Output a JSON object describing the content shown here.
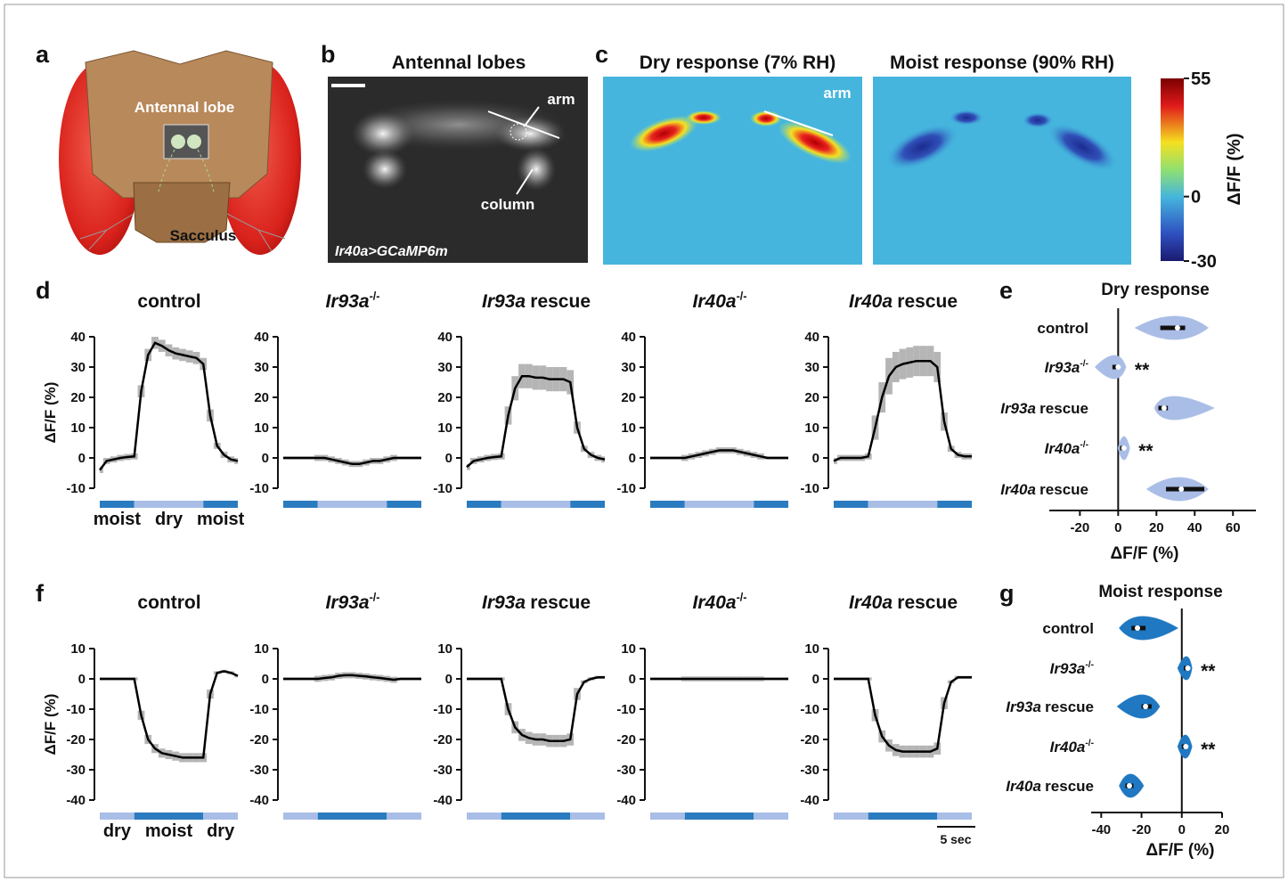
{
  "panel_a": {
    "label": "a",
    "antennal_lobe": "Antennal lobe",
    "sacculus": "Sacculus"
  },
  "panel_b": {
    "label": "b",
    "title": "Antennal lobes",
    "arm": "arm",
    "column": "column",
    "genotype": "Ir40a>GCaMP6m"
  },
  "panel_c": {
    "label": "c",
    "dry_title": "Dry response (7% RH)",
    "moist_title": "Moist response (90% RH)",
    "arm": "arm",
    "colorbar": {
      "lim": [
        -30,
        55
      ],
      "ticks": [
        55,
        0,
        -30
      ],
      "label": "ΔF/F (%)"
    }
  },
  "genotypes": [
    {
      "name": "control"
    },
    {
      "gene": "Ir93a",
      "sup": "-/-"
    },
    {
      "gene": "Ir93a",
      "text": "rescue"
    },
    {
      "gene": "Ir40a",
      "sup": "-/-"
    },
    {
      "gene": "Ir40a",
      "text": "rescue"
    }
  ],
  "panel_d": {
    "label": "d",
    "ylim": [
      -10,
      40
    ],
    "yticks": [
      -10,
      0,
      10,
      20,
      30,
      40
    ],
    "y_label": "ΔF/F (%)",
    "stimulus_labels": [
      "moist",
      "dry",
      "moist"
    ],
    "stimulus_colors": [
      "#2a7bc0",
      "#a9bee6",
      "#2a7bc0"
    ],
    "series": [
      {
        "values": [
          -4,
          -1,
          -0.5,
          0,
          0.3,
          0.5,
          22,
          34,
          38,
          37,
          35.5,
          34.5,
          34,
          33.5,
          33,
          31,
          14,
          4,
          1,
          -0.5,
          -1
        ],
        "error": [
          1,
          1,
          1,
          1,
          1,
          1,
          2,
          2,
          2,
          2,
          2,
          2,
          2,
          2,
          2,
          2,
          2,
          1,
          1,
          1,
          1
        ]
      },
      {
        "values": [
          0,
          0,
          0,
          0,
          0,
          0,
          0,
          -0.5,
          -1,
          -1.5,
          -2,
          -2,
          -1.5,
          -1,
          -1,
          -0.5,
          0,
          0,
          0,
          0,
          0
        ],
        "error": [
          0.5,
          0.5,
          0.5,
          0.5,
          0.5,
          1,
          1,
          1,
          1,
          1,
          1,
          1,
          1,
          1,
          1,
          1,
          1,
          0.5,
          0.5,
          0.5,
          0.5
        ]
      },
      {
        "values": [
          -3,
          -1,
          -0.5,
          0,
          0.3,
          0.5,
          14,
          23,
          27,
          27,
          26.5,
          26.5,
          26,
          26,
          26,
          25,
          10,
          3,
          1,
          0,
          -0.5
        ],
        "error": [
          1,
          1,
          1,
          1,
          1,
          1,
          3,
          4,
          4,
          4,
          4,
          4,
          4,
          4,
          4,
          4,
          2,
          1,
          1,
          1,
          1
        ]
      },
      {
        "values": [
          0,
          0,
          0,
          0,
          0,
          0,
          0.5,
          1,
          1.5,
          2,
          2.5,
          2.5,
          2.5,
          2,
          1.5,
          1,
          0.5,
          0,
          0,
          0,
          0
        ],
        "error": [
          0.5,
          0.5,
          0.5,
          0.5,
          0.5,
          1,
          1,
          1,
          1,
          1,
          1,
          1,
          1,
          1,
          1,
          1,
          1,
          0.5,
          0.5,
          0.5,
          0.5
        ]
      },
      {
        "values": [
          -1,
          0,
          0,
          0,
          0,
          0.5,
          10,
          20,
          27,
          30,
          31,
          31.5,
          32,
          32,
          32,
          30,
          12,
          3,
          1,
          0.5,
          0.5
        ],
        "error": [
          1,
          1,
          1,
          1,
          1,
          1,
          4,
          5,
          6,
          5,
          5,
          5,
          5,
          5,
          5,
          5,
          3,
          1,
          1,
          1,
          1
        ]
      }
    ]
  },
  "panel_e": {
    "label": "e",
    "title": "Dry response",
    "x_label": "ΔF/F (%)",
    "xlim": [
      -36,
      72
    ],
    "xticks": [
      -20,
      0,
      20,
      40,
      60
    ],
    "color": "#a9bde6",
    "violins": [
      {
        "min": 9,
        "q1": 22,
        "median": 31,
        "q3": 35,
        "max": 47
      },
      {
        "min": -12,
        "q1": -3,
        "median": 0,
        "q3": 1,
        "max": 4,
        "annotation": "**"
      },
      {
        "min": 19,
        "q1": 21,
        "median": 24,
        "q3": 26,
        "max": 50
      },
      {
        "min": 0,
        "q1": 1,
        "median": 3,
        "q3": 4,
        "max": 6,
        "annotation": "**"
      },
      {
        "min": 15,
        "q1": 25,
        "median": 33,
        "q3": 45,
        "max": 47
      }
    ]
  },
  "panel_f": {
    "label": "f",
    "ylim": [
      -40,
      10
    ],
    "yticks": [
      -40,
      -30,
      -20,
      -10,
      0,
      10
    ],
    "y_label": "ΔF/F (%)",
    "stimulus_labels": [
      "dry",
      "moist",
      "dry"
    ],
    "stimulus_colors": [
      "#a9bee6",
      "#2a7bc0",
      "#a9bee6"
    ],
    "scale_bar": "5 sec",
    "series": [
      {
        "values": [
          0,
          0,
          0,
          0,
          0,
          0,
          -12,
          -20,
          -23,
          -24.5,
          -25,
          -25.5,
          -26,
          -26,
          -26,
          -26,
          -5,
          2,
          2.5,
          2,
          1
        ],
        "error": [
          0.5,
          0.5,
          0.5,
          0.5,
          0.5,
          0.5,
          1.5,
          1.5,
          1.5,
          1.5,
          1.5,
          1.5,
          1.5,
          1.5,
          1.5,
          1.5,
          1.5,
          0.5,
          0.5,
          0.5,
          0.5
        ]
      },
      {
        "values": [
          0,
          0,
          0,
          0,
          0,
          0,
          0.3,
          0.5,
          1,
          1.2,
          1.2,
          1,
          0.8,
          0.5,
          0.3,
          0,
          -0.3,
          0,
          0,
          0,
          0
        ],
        "error": [
          0.5,
          0.5,
          0.5,
          0.5,
          0.5,
          1,
          1,
          1,
          1,
          1,
          1,
          1,
          1,
          1,
          1,
          1,
          1,
          0.5,
          0.5,
          0.5,
          0.5
        ]
      },
      {
        "values": [
          0,
          0,
          0,
          0,
          0,
          0,
          -10,
          -16,
          -18.5,
          -19.5,
          -20,
          -20,
          -20.5,
          -20.5,
          -20.5,
          -20,
          -5,
          -1,
          0,
          0.5,
          0.5
        ],
        "error": [
          0.5,
          0.5,
          0.5,
          0.5,
          0.5,
          0.5,
          2,
          2,
          2,
          2,
          2,
          2,
          2,
          2,
          2,
          2,
          2,
          0.5,
          0.5,
          0.5,
          0.5
        ]
      },
      {
        "values": [
          0,
          0,
          0,
          0,
          0,
          0,
          0,
          0,
          0,
          0,
          0,
          0,
          0,
          0,
          0,
          0,
          0,
          0,
          0,
          0,
          0
        ],
        "error": [
          0.5,
          0.5,
          0.5,
          0.5,
          0.5,
          0.8,
          0.8,
          0.8,
          0.8,
          0.8,
          0.8,
          0.8,
          0.8,
          0.8,
          0.8,
          0.8,
          0.8,
          0.5,
          0.5,
          0.5,
          0.5
        ]
      },
      {
        "values": [
          0,
          0,
          0,
          0,
          0,
          0,
          -12,
          -19,
          -22,
          -23.5,
          -24,
          -24,
          -24,
          -24,
          -24,
          -23,
          -8,
          -1,
          0.5,
          0.5,
          0.5
        ],
        "error": [
          0.5,
          0.5,
          0.5,
          0.5,
          0.5,
          0.5,
          2,
          2,
          2,
          2,
          2,
          2,
          2,
          2,
          2,
          2,
          2,
          0.5,
          0.5,
          0.5,
          0.5
        ]
      }
    ]
  },
  "panel_g": {
    "label": "g",
    "title": "Moist response",
    "x_label": "ΔF/F (%)",
    "xlim": [
      -45,
      20
    ],
    "xticks": [
      -40,
      -20,
      0,
      20
    ],
    "color": "#1f78c1",
    "violins": [
      {
        "min": -31,
        "q1": -25,
        "median": -22,
        "q3": -18,
        "max": -2
      },
      {
        "min": -2,
        "q1": 1,
        "median": 3,
        "q3": 4,
        "max": 5,
        "annotation": "**"
      },
      {
        "min": -32,
        "q1": -20,
        "median": -18,
        "q3": -15,
        "max": -11
      },
      {
        "min": -2,
        "q1": 0,
        "median": 2,
        "q3": 3,
        "max": 5,
        "annotation": "**"
      },
      {
        "min": -31,
        "q1": -28,
        "median": -26,
        "q3": -24,
        "max": -19
      }
    ]
  }
}
